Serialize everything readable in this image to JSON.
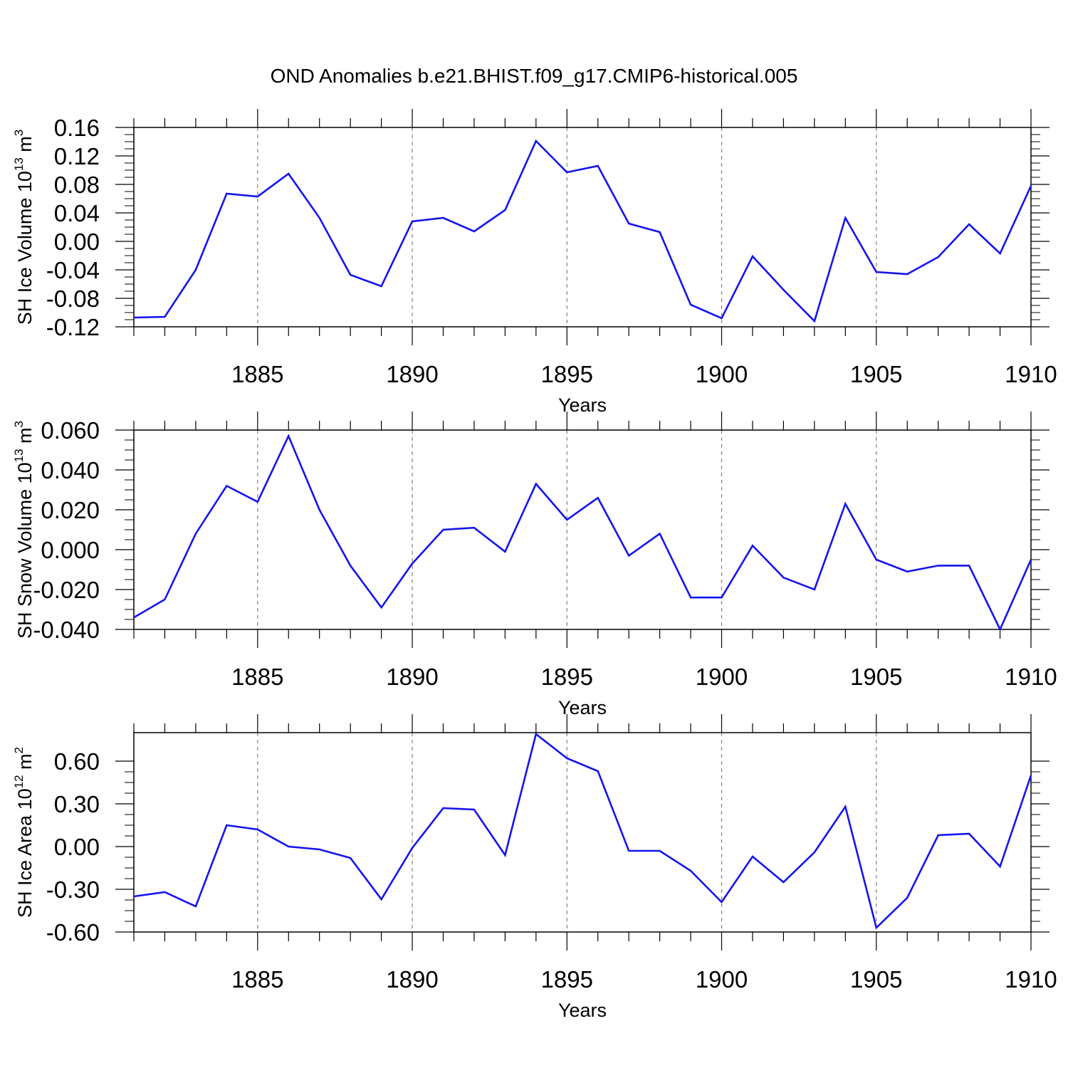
{
  "figure_title": "OND Anomalies b.e21.BHIST.f09_g17.CMIP6-historical.005",
  "colors": {
    "line": "#1414f0",
    "axes": "#000000",
    "grid": "#808080",
    "background": "#ffffff"
  },
  "chart_data": [
    {
      "type": "line",
      "xlabel": "Years",
      "ylabel_base": "SH Ice Volume 10",
      "ylabel_exp": "13",
      "ylabel_unit": " m",
      "ylabel_unit_exp": "3",
      "x": [
        1881,
        1882,
        1883,
        1884,
        1885,
        1886,
        1887,
        1888,
        1889,
        1890,
        1891,
        1892,
        1893,
        1894,
        1895,
        1896,
        1897,
        1898,
        1899,
        1900,
        1901,
        1902,
        1903,
        1904,
        1905,
        1906,
        1907,
        1908,
        1909,
        1910
      ],
      "values": [
        -0.107,
        -0.106,
        -0.04,
        0.067,
        0.063,
        0.095,
        0.033,
        -0.047,
        -0.063,
        0.028,
        0.033,
        0.014,
        0.044,
        0.141,
        0.097,
        0.106,
        0.025,
        0.013,
        -0.089,
        -0.108,
        -0.021,
        -0.068,
        -0.112,
        0.033,
        -0.043,
        -0.046,
        -0.022,
        0.024,
        -0.017,
        0.078
      ],
      "xlim": [
        1881,
        1910
      ],
      "ylim": [
        -0.12,
        0.16
      ],
      "xticks": [
        1885,
        1890,
        1895,
        1900,
        1905,
        1910
      ],
      "xtick_labels": [
        "1885",
        "1890",
        "1895",
        "1900",
        "1905",
        "1910"
      ],
      "yticks": [
        -0.12,
        -0.08,
        -0.04,
        0.0,
        0.04,
        0.08,
        0.12,
        0.16
      ],
      "ytick_labels": [
        "-0.12",
        "-0.08",
        "-0.04",
        "0.00",
        "0.04",
        "0.08",
        "0.12",
        "0.16"
      ],
      "grid": "vertical dashed at major x ticks"
    },
    {
      "type": "line",
      "xlabel": "Years",
      "ylabel_base": "SH Snow Volume 10",
      "ylabel_exp": "13",
      "ylabel_unit": " m",
      "ylabel_unit_exp": "3",
      "x": [
        1881,
        1882,
        1883,
        1884,
        1885,
        1886,
        1887,
        1888,
        1889,
        1890,
        1891,
        1892,
        1893,
        1894,
        1895,
        1896,
        1897,
        1898,
        1899,
        1900,
        1901,
        1902,
        1903,
        1904,
        1905,
        1906,
        1907,
        1908,
        1909,
        1910
      ],
      "values": [
        -0.034,
        -0.025,
        0.008,
        0.032,
        0.024,
        0.057,
        0.02,
        -0.008,
        -0.029,
        -0.007,
        0.01,
        0.011,
        -0.001,
        0.033,
        0.015,
        0.026,
        -0.003,
        0.008,
        -0.024,
        -0.024,
        0.002,
        -0.014,
        -0.02,
        0.023,
        -0.005,
        -0.011,
        -0.008,
        -0.008,
        -0.04,
        -0.005
      ],
      "xlim": [
        1881,
        1910
      ],
      "ylim": [
        -0.04,
        0.06
      ],
      "xticks": [
        1885,
        1890,
        1895,
        1900,
        1905,
        1910
      ],
      "xtick_labels": [
        "1885",
        "1890",
        "1895",
        "1900",
        "1905",
        "1910"
      ],
      "yticks": [
        -0.04,
        -0.02,
        0.0,
        0.02,
        0.04,
        0.06
      ],
      "ytick_labels": [
        "-0.040",
        "-0.020",
        "0.000",
        "0.020",
        "0.040",
        "0.060"
      ],
      "grid": "vertical dashed at major x ticks"
    },
    {
      "type": "line",
      "xlabel": "Years",
      "ylabel_base": "SH Ice Area 10",
      "ylabel_exp": "12",
      "ylabel_unit": " m",
      "ylabel_unit_exp": "2",
      "x": [
        1881,
        1882,
        1883,
        1884,
        1885,
        1886,
        1887,
        1888,
        1889,
        1890,
        1891,
        1892,
        1893,
        1894,
        1895,
        1896,
        1897,
        1898,
        1899,
        1900,
        1901,
        1902,
        1903,
        1904,
        1905,
        1906,
        1907,
        1908,
        1909,
        1910
      ],
      "values": [
        -0.35,
        -0.32,
        -0.42,
        0.15,
        0.12,
        0.0,
        -0.02,
        -0.08,
        -0.37,
        -0.01,
        0.27,
        0.26,
        -0.06,
        0.79,
        0.62,
        0.53,
        -0.03,
        -0.03,
        -0.17,
        -0.39,
        -0.07,
        -0.25,
        -0.04,
        0.28,
        -0.57,
        -0.36,
        0.08,
        0.09,
        -0.14,
        0.5
      ],
      "xlim": [
        1881,
        1910
      ],
      "ylim": [
        -0.6,
        0.8
      ],
      "xticks": [
        1885,
        1890,
        1895,
        1900,
        1905,
        1910
      ],
      "xtick_labels": [
        "1885",
        "1890",
        "1895",
        "1900",
        "1905",
        "1910"
      ],
      "yticks": [
        -0.6,
        -0.3,
        0.0,
        0.3,
        0.6
      ],
      "ytick_labels": [
        "-0.60",
        "-0.30",
        "0.00",
        "0.30",
        "0.60"
      ],
      "grid": "vertical dashed at major x ticks"
    }
  ]
}
